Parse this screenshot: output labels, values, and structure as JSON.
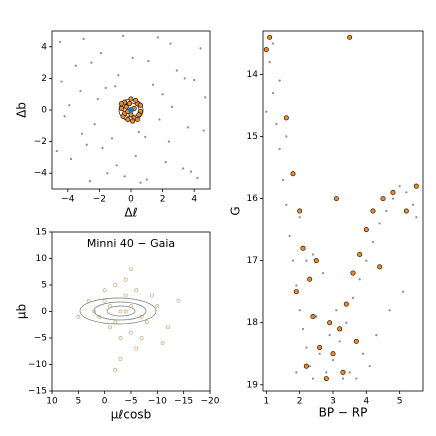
{
  "chart_data": [
    {
      "type": "scatter",
      "xlabel": "Δℓ",
      "ylabel": "Δb",
      "xlim": [
        -5,
        5
      ],
      "ylim": [
        -5,
        5
      ],
      "xticks": [
        {
          "value": -4,
          "label": "−4"
        },
        {
          "value": -2,
          "label": "−2"
        },
        0,
        2,
        4
      ],
      "yticks": [
        {
          "value": -4,
          "label": "−4"
        },
        {
          "value": -2,
          "label": "−2"
        },
        0,
        2,
        4
      ],
      "series": [
        {
          "color": "#8a8a8a",
          "size": 1.1,
          "x": [
            -4.5,
            -3.8,
            -3.2,
            -2.6,
            -1.9,
            -1.2,
            -0.5,
            0.3,
            1.1,
            1.8,
            2.5,
            3.3,
            4.0,
            4.6,
            -4.2,
            -3.5,
            -2.8,
            -2.1,
            -1.5,
            -0.8,
            0.6,
            1.4,
            2.2,
            2.9,
            3.6,
            4.4,
            -4.7,
            -3.9,
            -3.0,
            -2.3,
            -1.6,
            -0.9,
            0.1,
            0.9,
            1.7,
            2.6,
            3.4,
            4.2,
            -4.4,
            -3.1,
            -1.8,
            -0.4,
            1.0,
            2.4,
            3.8,
            4.7,
            -2.5,
            2.0,
            -1.0,
            0.5
          ],
          "y": [
            4.3,
            -3.1,
            1.2,
            -4.5,
            3.6,
            -1.8,
            4.7,
            -2.9,
            3.1,
            -0.6,
            4.2,
            -3.7,
            1.9,
            -1.3,
            -0.4,
            2.8,
            -2.2,
            0.7,
            -4.0,
            2.2,
            -4.6,
            1.6,
            -3.3,
            2.5,
            -1.1,
            3.9,
            -2.6,
            0.3,
            4.5,
            -0.9,
            1.4,
            -3.5,
            3.3,
            -1.7,
            4.6,
            0.2,
            2.0,
            -4.3,
            1.8,
            -1.5,
            -2.4,
            -4.2,
            -4.4,
            -2.0,
            -3.9,
            0.8,
            3.0,
            1.0,
            1.5,
            -1.4
          ]
        },
        {
          "color": "#f08a24",
          "edgecolor": "#000",
          "size": 2.2,
          "x": [
            -0.6,
            -0.4,
            -0.2,
            0,
            0.2,
            0.4,
            0.6,
            -0.5,
            -0.3,
            0.1,
            0.3,
            0.5,
            -0.1,
            0.2,
            -0.4,
            0.4,
            -0.6,
            0.6,
            0,
            -0.2
          ],
          "y": [
            0.1,
            0.5,
            -0.6,
            0.7,
            -0.5,
            0.4,
            -0.1,
            -0.4,
            0.2,
            -0.7,
            0.6,
            -0.3,
            0.4,
            0.1,
            -0.2,
            -0.6,
            0.4,
            0.3,
            -0.3,
            -0.1
          ]
        },
        {
          "color": "#1f77b4",
          "size": 3,
          "x": [
            0
          ],
          "y": [
            0
          ]
        }
      ]
    },
    {
      "type": "scatter",
      "xlabel": "μℓcosb",
      "ylabel": "μb",
      "annotation": "Minni 40  −  Gaia",
      "xlim": [
        10,
        -20
      ],
      "ylim": [
        -15,
        15
      ],
      "xticks": [
        10,
        5,
        0,
        {
          "value": -5,
          "label": "−5"
        },
        {
          "value": -10,
          "label": "−10"
        },
        {
          "value": -15,
          "label": "−15"
        },
        {
          "value": -20,
          "label": "−20"
        }
      ],
      "yticks": [
        {
          "value": -15,
          "label": "−15"
        },
        {
          "value": -10,
          "label": "−10"
        },
        {
          "value": -5,
          "label": "−5"
        },
        0,
        5,
        10,
        15
      ],
      "series": [
        {
          "color": "none",
          "edgecolor": "#c9986a",
          "size": 1.6,
          "x": [
            -3,
            -5,
            -2,
            0,
            -7,
            -4,
            -1,
            2,
            -6,
            -8,
            -3,
            -10,
            1,
            -5,
            -2,
            -12,
            3,
            -4,
            -9,
            -6,
            5,
            -1,
            -14,
            -3,
            -7,
            0,
            -11,
            -5,
            -2,
            -4
          ],
          "y": [
            0,
            1,
            -2,
            2,
            -1,
            3,
            -3,
            0,
            4,
            -2,
            -5,
            1,
            -1,
            -4,
            5,
            -3,
            2,
            6,
            3,
            -7,
            -1,
            1,
            2,
            -9,
            -5,
            4,
            -6,
            8,
            -11,
            0
          ]
        }
      ]
    },
    {
      "type": "scatter",
      "xlabel": "BP − RP",
      "ylabel": "G",
      "xlim": [
        0.9,
        5.7
      ],
      "ylim": [
        19.1,
        13.3
      ],
      "xticks": [
        1,
        2,
        3,
        4,
        5
      ],
      "yticks": [
        14,
        15,
        16,
        17,
        18,
        19
      ],
      "series": [
        {
          "color": "#8a8a8a",
          "size": 1.1,
          "x": [
            1.1,
            1.2,
            1.3,
            1.4,
            1.5,
            1.6,
            1.7,
            1.8,
            1.9,
            2.0,
            2.1,
            2.2,
            2.3,
            2.4,
            2.6,
            2.8,
            3.0,
            3.2,
            3.4,
            3.6,
            3.8,
            4.0,
            4.2,
            4.4,
            4.6,
            4.8,
            5.0,
            5.2,
            5.4,
            3.5,
            3.9,
            4.3,
            4.7,
            5.1,
            2.5,
            2.9,
            3.3,
            3.7,
            4.1,
            1.4,
            1.6,
            2.0,
            2.2,
            1.9,
            2.7,
            3.1,
            5.5,
            1.2,
            1.0,
            2.4
          ],
          "y": [
            13.8,
            14.3,
            14.8,
            15.2,
            15.7,
            16.1,
            16.6,
            17.0,
            17.4,
            17.8,
            18.1,
            18.4,
            18.7,
            18.9,
            18.5,
            18.8,
            18.6,
            18.3,
            18.0,
            17.6,
            17.3,
            17.0,
            16.7,
            16.4,
            16.2,
            16.0,
            15.8,
            15.9,
            16.1,
            18.8,
            18.5,
            18.2,
            17.8,
            17.5,
            17.9,
            18.2,
            18.9,
            18.9,
            18.7,
            14.1,
            15.0,
            16.3,
            17.0,
            18.8,
            17.2,
            17.8,
            16.3,
            13.5,
            14.6,
            16.9
          ]
        },
        {
          "color": "#f08a24",
          "edgecolor": "#000",
          "size": 2.2,
          "x": [
            1.0,
            1.1,
            1.6,
            1.8,
            2.0,
            2.1,
            2.3,
            2.4,
            2.6,
            2.2,
            2.8,
            3.0,
            3.2,
            3.4,
            3.6,
            3.8,
            4.0,
            4.2,
            4.5,
            4.8,
            5.2,
            5.5,
            3.3,
            3.7,
            2.9,
            1.9,
            2.5,
            3.1,
            4.4,
            3.5
          ],
          "y": [
            13.6,
            13.4,
            14.7,
            15.6,
            16.2,
            16.8,
            17.3,
            17.9,
            18.4,
            18.7,
            18.9,
            18.5,
            18.1,
            17.7,
            17.2,
            16.9,
            16.5,
            16.2,
            16.0,
            15.9,
            16.2,
            15.8,
            18.8,
            18.3,
            18.0,
            17.5,
            17.0,
            16.0,
            17.1,
            13.4
          ]
        }
      ]
    }
  ]
}
